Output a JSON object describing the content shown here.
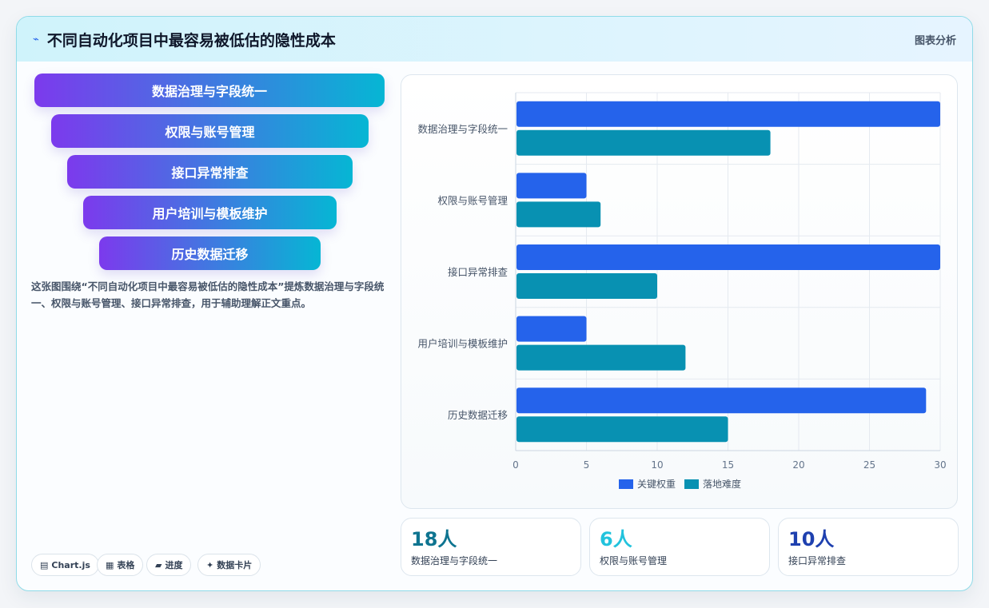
{
  "header": {
    "icon": "chart-trend-icon",
    "title": "不同自动化项目中最容易被低估的隐性成本",
    "tag": "图表分析"
  },
  "funnel": [
    "数据治理与字段统一",
    "权限与账号管理",
    "接口异常排查",
    "用户培训与模板维护",
    "历史数据迁移"
  ],
  "description": "这张图围绕“不同自动化项目中最容易被低估的隐性成本”提炼数据治理与字段统一、权限与账号管理、接口异常排查，用于辅助理解正文重点。",
  "pills": [
    {
      "icon": "▤",
      "label": "Chart.js"
    },
    {
      "icon": "▦",
      "label": "表格"
    },
    {
      "icon": "▰",
      "label": "进度"
    },
    {
      "icon": "✦",
      "label": "数据卡片"
    }
  ],
  "stats": [
    {
      "value": "18人",
      "label": "数据治理与字段统一",
      "color": "#0e7490"
    },
    {
      "value": "6人",
      "label": "权限与账号管理",
      "color": "#22c3dd"
    },
    {
      "value": "10人",
      "label": "接口异常排查",
      "color": "#1e40af"
    }
  ],
  "chart_data": {
    "type": "bar",
    "orientation": "horizontal",
    "categories": [
      "数据治理与字段统一",
      "权限与账号管理",
      "接口异常排查",
      "用户培训与模板维护",
      "历史数据迁移"
    ],
    "series": [
      {
        "name": "关键权重",
        "color": "#2563eb",
        "values": [
          30,
          5,
          30,
          5,
          29
        ]
      },
      {
        "name": "落地难度",
        "color": "#0891b2",
        "values": [
          18,
          6,
          10,
          12,
          15
        ]
      }
    ],
    "xlim": [
      0,
      30
    ],
    "xticks": [
      0,
      5,
      10,
      15,
      20,
      25,
      30
    ],
    "legend": "bottom",
    "grid": true
  }
}
